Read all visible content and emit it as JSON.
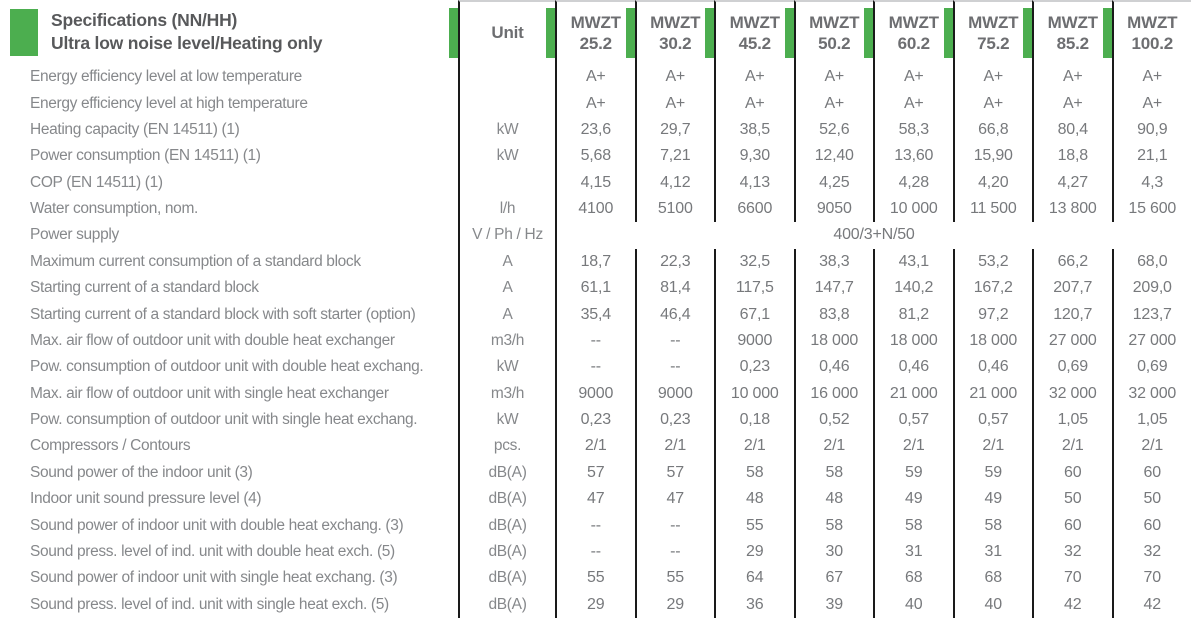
{
  "colors": {
    "accent_green": "#4cae4f",
    "line": "#1a1a1a",
    "title_text": "#58595b",
    "column_header_text": "#6d6e71",
    "row_label_text": "#86888b",
    "value_text": "#77797c"
  },
  "header": {
    "title_line1": "Specifications (NN/HH)",
    "title_line2": "Ultra low noise level/Heating only",
    "unit_label": "Unit",
    "columns": [
      {
        "brand": "MWZT",
        "model": "25.2"
      },
      {
        "brand": "MWZT",
        "model": "30.2"
      },
      {
        "brand": "MWZT",
        "model": "45.2"
      },
      {
        "brand": "MWZT",
        "model": "50.2"
      },
      {
        "brand": "MWZT",
        "model": "60.2"
      },
      {
        "brand": "MWZT",
        "model": "75.2"
      },
      {
        "brand": "MWZT",
        "model": "85.2"
      },
      {
        "brand": "MWZT",
        "model": "100.2"
      }
    ]
  },
  "rows": [
    {
      "label": "Energy efficiency level at low temperature",
      "unit": "",
      "values": [
        "A+",
        "A+",
        "A+",
        "A+",
        "A+",
        "A+",
        "A+",
        "A+"
      ]
    },
    {
      "label": "Energy efficiency level at high temperature",
      "unit": "",
      "values": [
        "A+",
        "A+",
        "A+",
        "A+",
        "A+",
        "A+",
        "A+",
        "A+"
      ]
    },
    {
      "label": "Heating capacity (EN 14511)  (1)",
      "unit": "kW",
      "values": [
        "23,6",
        "29,7",
        "38,5",
        "52,6",
        "58,3",
        "66,8",
        "80,4",
        "90,9"
      ]
    },
    {
      "label": "Power consumption (EN 14511)  (1)",
      "unit": "kW",
      "values": [
        "5,68",
        "7,21",
        "9,30",
        "12,40",
        "13,60",
        "15,90",
        "18,8",
        "21,1"
      ]
    },
    {
      "label": "COP (EN 14511)  (1)",
      "unit": "",
      "values": [
        "4,15",
        "4,12",
        "4,13",
        "4,25",
        "4,28",
        "4,20",
        "4,27",
        "4,3"
      ]
    },
    {
      "label": "Water consumption, nom.",
      "unit": "l/h",
      "values": [
        "4100",
        "5100",
        "6600",
        "9050",
        "10 000",
        "11 500",
        "13 800",
        "15 600"
      ]
    },
    {
      "label": "Power supply",
      "unit": "V / Ph / Hz",
      "span_value": "400/3+N/50"
    },
    {
      "label": "Maximum current consumption of a standard block",
      "unit": "A",
      "values": [
        "18,7",
        "22,3",
        "32,5",
        "38,3",
        "43,1",
        "53,2",
        "66,2",
        "68,0"
      ]
    },
    {
      "label": "Starting current of a standard block",
      "unit": "A",
      "values": [
        "61,1",
        "81,4",
        "117,5",
        "147,7",
        "140,2",
        "167,2",
        "207,7",
        "209,0"
      ]
    },
    {
      "label": "Starting current of a standard block with soft starter (option)",
      "unit": "A",
      "values": [
        "35,4",
        "46,4",
        "67,1",
        "83,8",
        "81,2",
        "97,2",
        "120,7",
        "123,7"
      ]
    },
    {
      "label": "Max. air flow of outdoor unit with double heat exchanger",
      "unit": "m3/h",
      "values": [
        "--",
        "--",
        "9000",
        "18 000",
        "18 000",
        "18 000",
        "27 000",
        "27 000"
      ]
    },
    {
      "label": "Pow. consumption of outdoor unit with double heat exchang.",
      "unit": "kW",
      "values": [
        "--",
        "--",
        "0,23",
        "0,46",
        "0,46",
        "0,46",
        "0,69",
        "0,69"
      ]
    },
    {
      "label": "Max. air flow of outdoor unit with single heat exchanger",
      "unit": "m3/h",
      "values": [
        "9000",
        "9000",
        "10 000",
        "16 000",
        "21 000",
        "21 000",
        "32 000",
        "32 000"
      ]
    },
    {
      "label": "Pow. consumption of outdoor unit with single heat exchang.",
      "unit": "kW",
      "values": [
        "0,23",
        "0,23",
        "0,18",
        "0,52",
        "0,57",
        "0,57",
        "1,05",
        "1,05"
      ]
    },
    {
      "label": "Compressors / Contours",
      "unit": "pcs.",
      "values": [
        "2/1",
        "2/1",
        "2/1",
        "2/1",
        "2/1",
        "2/1",
        "2/1",
        "2/1"
      ]
    },
    {
      "label": "Sound power of the indoor unit (3)",
      "unit": "dB(A)",
      "values": [
        "57",
        "57",
        "58",
        "58",
        "59",
        "59",
        "60",
        "60"
      ]
    },
    {
      "label": "Indoor unit sound pressure level (4)",
      "unit": "dB(A)",
      "values": [
        "47",
        "47",
        "48",
        "48",
        "49",
        "49",
        "50",
        "50"
      ]
    },
    {
      "label": "Sound power of indoor unit with double heat exchang. (3)",
      "unit": "dB(A)",
      "values": [
        "--",
        "--",
        "55",
        "58",
        "58",
        "58",
        "60",
        "60"
      ]
    },
    {
      "label": "Sound press. level of ind. unit with double heat exch. (5)",
      "unit": "dB(A)",
      "values": [
        "--",
        "--",
        "29",
        "30",
        "31",
        "31",
        "32",
        "32"
      ]
    },
    {
      "label": "Sound power of indoor unit with single heat exchang. (3)",
      "unit": "dB(A)",
      "values": [
        "55",
        "55",
        "64",
        "67",
        "68",
        "68",
        "70",
        "70"
      ]
    },
    {
      "label": "Sound press. level of ind. unit with single heat exch. (5)",
      "unit": "dB(A)",
      "values": [
        "29",
        "29",
        "36",
        "39",
        "40",
        "40",
        "42",
        "42"
      ]
    }
  ]
}
